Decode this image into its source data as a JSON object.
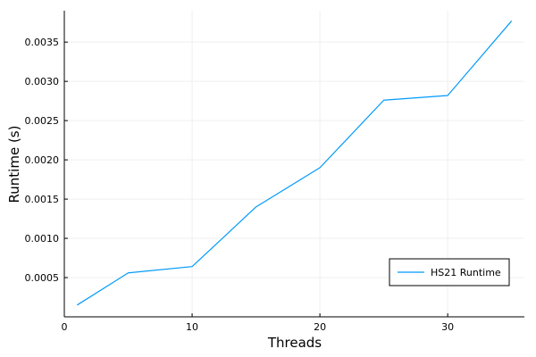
{
  "chart_data": {
    "type": "line",
    "title": "",
    "xlabel": "Threads",
    "ylabel": "Runtime (s)",
    "xlim": [
      0,
      36
    ],
    "ylim": [
      0,
      0.0039
    ],
    "x_ticks": [
      0,
      10,
      20,
      30
    ],
    "x_tick_labels": [
      "0",
      "10",
      "20",
      "30"
    ],
    "y_ticks": [
      0.0005,
      0.001,
      0.0015,
      0.002,
      0.0025,
      0.003,
      0.0035
    ],
    "y_tick_labels": [
      "0.0005",
      "0.0010",
      "0.0015",
      "0.0020",
      "0.0025",
      "0.0030",
      "0.0035"
    ],
    "grid": true,
    "legend_position": "bottom-right",
    "series": [
      {
        "name": "HS21 Runtime",
        "color": "#009AFA",
        "x": [
          1,
          5,
          10,
          15,
          20,
          25,
          30,
          35
        ],
        "y": [
          0.00015,
          0.00056,
          0.00064,
          0.0014,
          0.0019,
          0.00276,
          0.00282,
          0.00377
        ]
      }
    ]
  }
}
